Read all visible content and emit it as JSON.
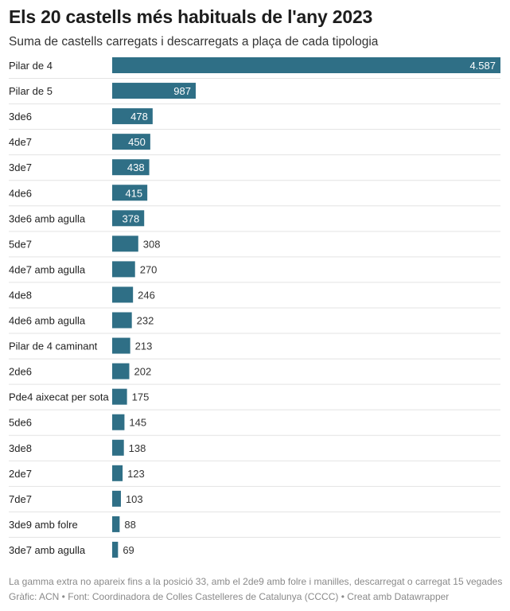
{
  "title": "Els 20 castells més habituals de l'any 2023",
  "subtitle": "Suma de castells carregats i descarregats a plaça de cada tipologia",
  "footnote": "La gamma extra no apareix fins a la posició 33, amb el 2de9 amb folre i manilles, descarregat o carregat 15 vegades",
  "source": "Gràfic: ACN • Font: Coordinadora de Colles Castelleres de Catalunya (CCCC) • Creat amb Datawrapper",
  "colors": {
    "bar": "#2f6f86",
    "label_inside": "#ffffff",
    "label_outside": "#333333",
    "separator": "#e3e3e3"
  },
  "chart_data": {
    "type": "bar",
    "orientation": "horizontal",
    "categories": [
      "Pilar de 4",
      "Pilar de 5",
      "3de6",
      "4de7",
      "3de7",
      "4de6",
      "3de6 amb agulla",
      "5de7",
      "4de7 amb agulla",
      "4de8",
      "4de6 amb agulla",
      "Pilar de 4 caminant",
      "2de6",
      "Pde4 aixecat per sota",
      "5de6",
      "3de8",
      "2de7",
      "7de7",
      "3de9 amb folre",
      "3de7 amb agulla"
    ],
    "values": [
      4587,
      987,
      478,
      450,
      438,
      415,
      378,
      308,
      270,
      246,
      232,
      213,
      202,
      175,
      145,
      138,
      123,
      103,
      88,
      69
    ],
    "value_labels": [
      "4.587",
      "987",
      "478",
      "450",
      "438",
      "415",
      "378",
      "308",
      "270",
      "246",
      "232",
      "213",
      "202",
      "175",
      "145",
      "138",
      "123",
      "103",
      "88",
      "69"
    ],
    "xlim": [
      0,
      4587
    ],
    "grid": false,
    "legend": "none"
  }
}
